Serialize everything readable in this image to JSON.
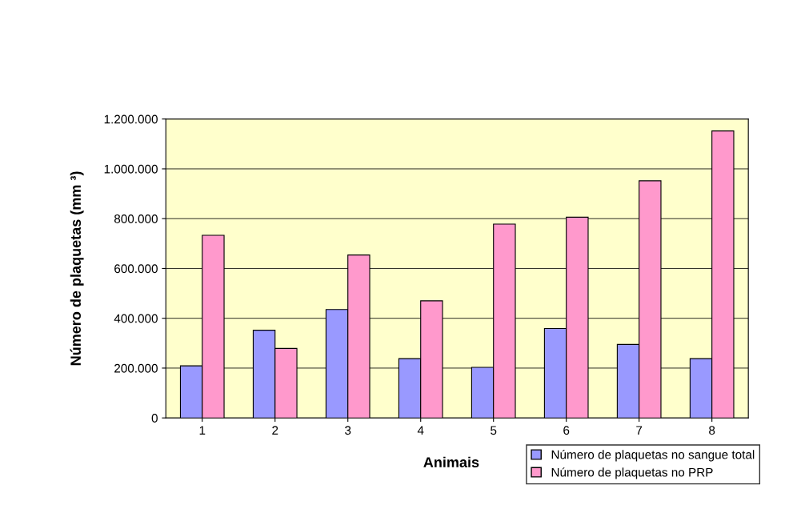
{
  "chart_data": {
    "type": "bar",
    "xlabel": "Animais",
    "ylabel": "Número de plaquetas (mm ³)",
    "categories": [
      "1",
      "2",
      "3",
      "4",
      "5",
      "6",
      "7",
      "8"
    ],
    "series": [
      {
        "name": "Número de plaquetas no sangue total",
        "color": "#9999ff",
        "values": [
          209000,
          352000,
          435000,
          238000,
          203000,
          359000,
          295000,
          238000
        ]
      },
      {
        "name": "Número de plaquetas no PRP",
        "color": "#ff99cc",
        "values": [
          733000,
          279000,
          654000,
          470000,
          778000,
          806000,
          952000,
          1152000
        ]
      }
    ],
    "ylim": [
      0,
      1200000
    ],
    "yticks": [
      {
        "value": 0,
        "label": "0"
      },
      {
        "value": 200000,
        "label": "200.000"
      },
      {
        "value": 400000,
        "label": "400.000"
      },
      {
        "value": 600000,
        "label": "600.000"
      },
      {
        "value": 800000,
        "label": "800.000"
      },
      {
        "value": 1000000,
        "label": "1.000.000"
      },
      {
        "value": 1200000,
        "label": "1.200.000"
      }
    ],
    "grid": "y",
    "legend": "bottom right"
  }
}
